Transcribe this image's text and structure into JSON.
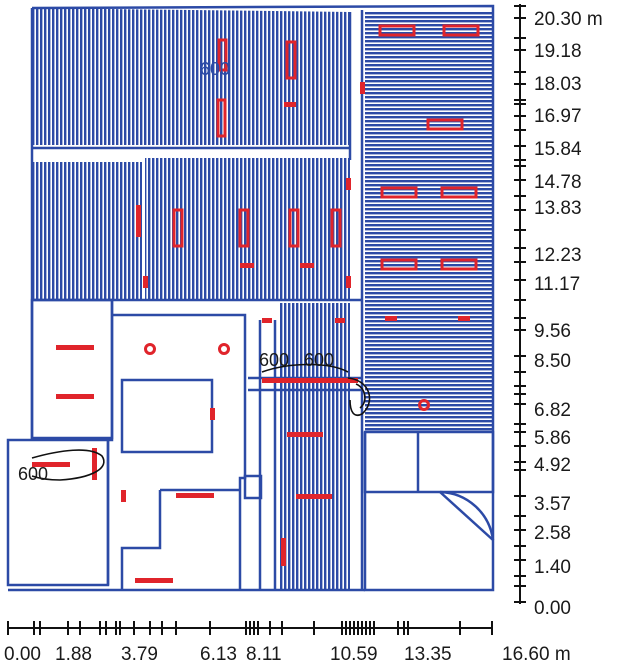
{
  "plan": {
    "colors": {
      "hatch": "#2c4aa6",
      "wall": "#2c4aa6",
      "fixture": "#e0242b",
      "contour": "#111111",
      "axis": "#111111",
      "background": "#ffffff"
    },
    "x_axis": {
      "labels": [
        "0.00",
        "1.88",
        "3.79",
        "6.13",
        "8.11",
        "10.59",
        "13.35",
        "16.60 m"
      ]
    },
    "y_axis": {
      "labels": [
        "20.30 m",
        "19.18",
        "18.03",
        "16.97",
        "15.84",
        "14.78",
        "13.83",
        "12.23",
        "11.17",
        "9.56",
        "8.50",
        "6.82",
        "5.86",
        "4.92",
        "3.57",
        "2.58",
        "1.40",
        "0.00"
      ]
    },
    "contour_labels": [
      "600",
      "600",
      "600",
      "600"
    ]
  }
}
